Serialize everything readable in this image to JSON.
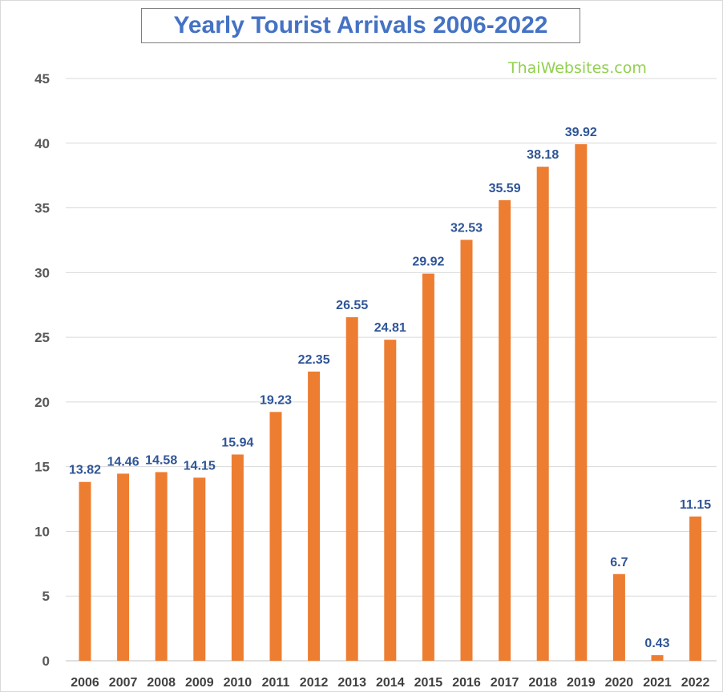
{
  "colors": {
    "bar": "#ed7d31",
    "label": "#2f5597",
    "title": "#4472c4",
    "watermark": "#92d050",
    "grid": "#d9d9d9"
  },
  "watermark": "ThaiWebsites.com",
  "chart_data": {
    "type": "bar",
    "title": "Yearly Tourist Arrivals 2006-2022",
    "xlabel": "",
    "ylabel": "",
    "categories": [
      "2006",
      "2007",
      "2008",
      "2009",
      "2010",
      "2011",
      "2012",
      "2013",
      "2014",
      "2015",
      "2016",
      "2017",
      "2018",
      "2019",
      "2020",
      "2021",
      "2022"
    ],
    "values": [
      13.82,
      14.46,
      14.58,
      14.15,
      15.94,
      19.23,
      22.35,
      26.55,
      24.81,
      29.92,
      32.53,
      35.59,
      38.18,
      39.92,
      6.7,
      0.43,
      11.15
    ],
    "data_labels": [
      "13.82",
      "14.46",
      "14.58",
      "14.15",
      "15.94",
      "19.23",
      "22.35",
      "26.55",
      "24.81",
      "29.92",
      "32.53",
      "35.59",
      "38.18",
      "39.92",
      "6.7",
      "0.43",
      "11.15"
    ],
    "ylim": [
      0,
      45
    ],
    "yticks": [
      0,
      5,
      10,
      15,
      20,
      25,
      30,
      35,
      40,
      45
    ],
    "grid": true,
    "legend": "none"
  }
}
